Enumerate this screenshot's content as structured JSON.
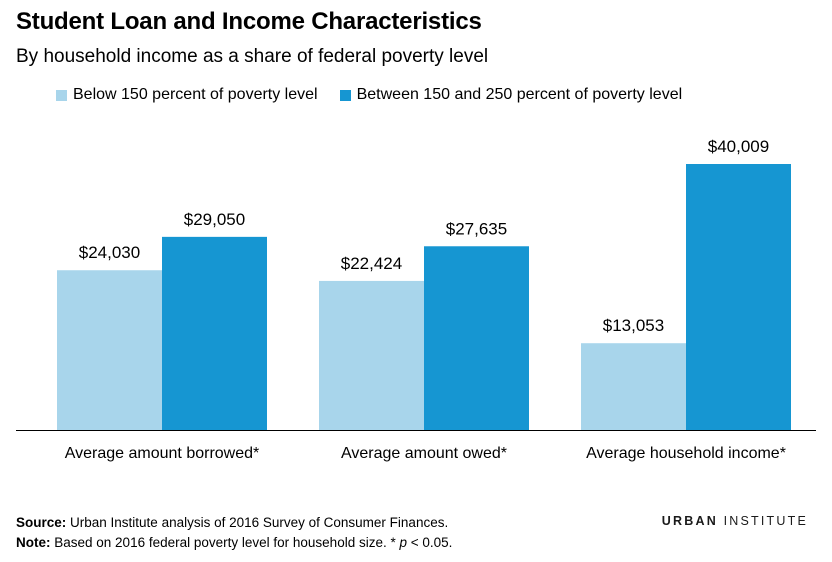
{
  "title": "Student Loan and Income Characteristics",
  "subtitle": "By household income as a share of federal poverty level",
  "legend": [
    {
      "label": "Below 150 percent of poverty level",
      "color": "#a8d5eb"
    },
    {
      "label": "Between 150 and 250 percent of poverty level",
      "color": "#1696d2"
    }
  ],
  "chart_data": {
    "type": "bar",
    "categories": [
      "Average amount borrowed*",
      "Average amount owed*",
      "Average household income*"
    ],
    "series": [
      {
        "name": "Below 150 percent of poverty level",
        "values": [
          24030,
          22424,
          13053
        ],
        "labels": [
          "$24,030",
          "$22,424",
          "$13,053"
        ],
        "color": "#a8d5eb"
      },
      {
        "name": "Between 150 and 250 percent of poverty level",
        "values": [
          29050,
          27635,
          40009
        ],
        "labels": [
          "$29,050",
          "$27,635",
          "$40,009"
        ],
        "color": "#1696d2"
      }
    ],
    "ylim": [
      0,
      40009
    ],
    "grid": false,
    "legend_position": "top-left"
  },
  "footer": {
    "source_label": "Source:",
    "source_text": " Urban Institute analysis of 2016 Survey of Consumer Finances.",
    "note_label": "Note:",
    "note_text_1": " Based on 2016 federal poverty level for household size. * ",
    "note_p": "p",
    "note_text_2": " < 0.05."
  },
  "brand": {
    "part1": "URBAN",
    "part2": " INSTITUTE"
  }
}
